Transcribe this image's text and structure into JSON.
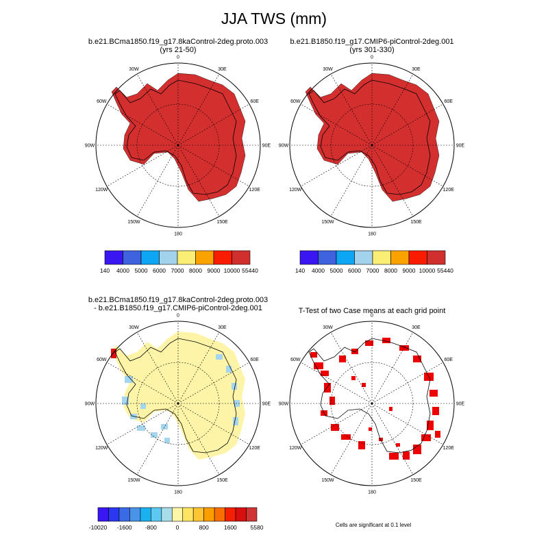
{
  "title": "JJA TWS (mm)",
  "panels": [
    {
      "title_lines": [
        "b.e21.BCma1850.f19_g17.8kaControl-2deg.proto.003",
        "(yrs 21-50)"
      ]
    },
    {
      "title_lines": [
        "b.e21.B1850.f19_g17.CMIP6-piControl-2deg.001",
        "(yrs 301-330)"
      ]
    },
    {
      "title_lines": [
        "b.e21.BCma1850.f19_g17.8kaControl-2deg.proto.003",
        "- b.e21.B1850.f19_g17.CMIP6-piControl-2deg.001"
      ]
    },
    {
      "title_lines": [
        "T-Test of two Case means at each grid point"
      ]
    }
  ],
  "longitude_labels": [
    "0",
    "30E",
    "60E",
    "90E",
    "120E",
    "150E",
    "180",
    "150W",
    "120W",
    "90W",
    "60W",
    "30W"
  ],
  "colorbar_top": {
    "colors": [
      "#3a16f0",
      "#3f62de",
      "#0ca6f5",
      "#a3d2ec",
      "#fbee75",
      "#f9a200",
      "#f81d00",
      "#d12e2e"
    ],
    "labels": [
      "140",
      "4000",
      "5000",
      "6000",
      "7000",
      "8000",
      "9000",
      "10000",
      "55440"
    ]
  },
  "colorbar_diff": {
    "colors": [
      "#3a16f0",
      "#2c37f0",
      "#3b6ae6",
      "#4993e8",
      "#19b1f0",
      "#5dc8f0",
      "#a9dceb",
      "#fef6a6",
      "#fde462",
      "#fdc534",
      "#fb9c00",
      "#f96e00",
      "#f41f00",
      "#d80f0f",
      "#d03535"
    ],
    "labels": [
      "-10020",
      "-1600",
      "-800",
      "0",
      "800",
      "1600",
      "5580"
    ]
  },
  "footnote": "Cells are significant at 0.1 level",
  "colors": {
    "tws_fill": "#d32f2f",
    "diff_fill": "#fdf4a8",
    "diff_negative": "#a5d6ee",
    "significant": "#ee0000"
  }
}
